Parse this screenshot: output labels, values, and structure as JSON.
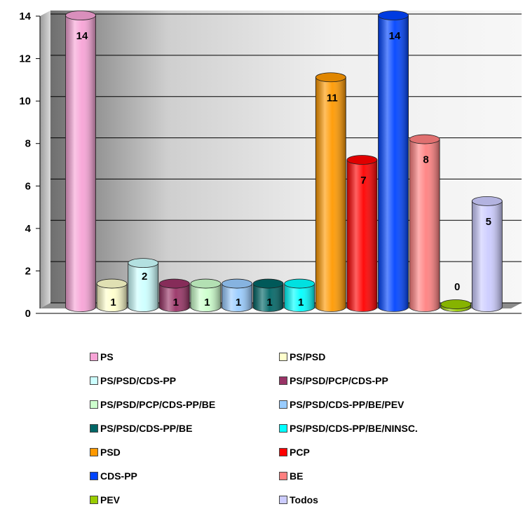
{
  "chart_data": {
    "type": "bar",
    "style": "3d-cylinder",
    "title": "",
    "xlabel": "",
    "ylabel": "",
    "ylim": [
      0,
      14
    ],
    "yticks": [
      "0",
      "2",
      "4",
      "6",
      "8",
      "10",
      "12",
      "14"
    ],
    "grid": true,
    "legend_position": "bottom",
    "categories": [
      "PS",
      "PS/PSD",
      "PS/PSD/CDS-PP",
      "PS/PSD/PCP/CDS-PP",
      "PS/PSD/PCP/CDS-PP/BE",
      "PS/PSD/CDS-PP/BE/PEV",
      "PS/PSD/CDS-PP/BE",
      "PS/PSD/CDS-PP/BE/NINSC.",
      "PSD",
      "PCP",
      "CDS-PP",
      "BE",
      "PEV",
      "Todos"
    ],
    "values": [
      14,
      1,
      2,
      1,
      1,
      1,
      1,
      1,
      11,
      7,
      14,
      8,
      0,
      5
    ],
    "value_labels": [
      "14",
      "1",
      "2",
      "1",
      "1",
      "1",
      "1",
      "1",
      "11",
      "7",
      "14",
      "8",
      "0",
      "5"
    ],
    "colors": [
      "#f7a3d6",
      "#ffffcc",
      "#ccffff",
      "#993366",
      "#ccffcc",
      "#99ccff",
      "#006666",
      "#00ffff",
      "#ff9900",
      "#ff0000",
      "#0044ff",
      "#ff8080",
      "#99cc00",
      "#ccccff"
    ]
  }
}
